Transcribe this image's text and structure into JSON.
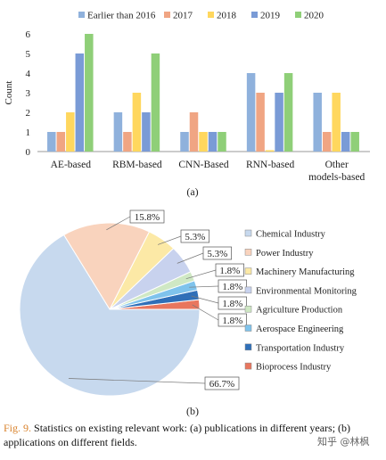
{
  "colors": {
    "earlier": "#8fb1dc",
    "y2017": "#f0a583",
    "y2018": "#ffd75e",
    "y2019": "#7a9bd6",
    "y2020": "#8fcf78",
    "axis": "#999999"
  },
  "chart_data": [
    {
      "type": "bar",
      "panel_label": "(a)",
      "categories": [
        "AE-based",
        "RBM-based",
        "CNN-Based",
        "RNN-based",
        "Other\nmodels-based"
      ],
      "series": [
        {
          "name": "Earlier than 2016",
          "color_key": "earlier",
          "values": [
            1,
            2,
            1,
            4,
            3
          ]
        },
        {
          "name": "2017",
          "color_key": "y2017",
          "values": [
            1,
            1,
            2,
            3,
            1
          ]
        },
        {
          "name": "2018",
          "color_key": "y2018",
          "values": [
            2,
            3,
            1,
            0,
            3
          ]
        },
        {
          "name": "2019",
          "color_key": "y2019",
          "values": [
            5,
            2,
            1,
            3,
            1
          ]
        },
        {
          "name": "2020",
          "color_key": "y2020",
          "values": [
            6,
            5,
            1,
            4,
            1
          ]
        }
      ],
      "ylabel": "Count",
      "ylim": [
        0,
        6
      ],
      "yticks": [
        0,
        1,
        2,
        3,
        4,
        5,
        6
      ],
      "legend_position": "top",
      "grid": false
    },
    {
      "type": "pie",
      "panel_label": "(b)",
      "slices": [
        {
          "label": "Chemical Industry",
          "value": 66.7,
          "text": "66.7%",
          "color": "#c7d9ee"
        },
        {
          "label": "Power Industry",
          "value": 15.8,
          "text": "15.8%",
          "color": "#f9d3bd"
        },
        {
          "label": "Machinery Manufacturing",
          "value": 5.3,
          "text": "5.3%",
          "color": "#fce9a6"
        },
        {
          "label": "Environmental Monitoring",
          "value": 5.3,
          "text": "5.3%",
          "color": "#c8d2ee"
        },
        {
          "label": "Agriculture Production",
          "value": 1.8,
          "text": "1.8%",
          "color": "#cfe8c4"
        },
        {
          "label": "Aerospace Engineering",
          "value": 1.8,
          "text": "1.8%",
          "color": "#7fc3ec"
        },
        {
          "label": "Transportation Industry",
          "value": 1.8,
          "text": "1.8%",
          "color": "#2f6fb8"
        },
        {
          "label": "Bioprocess Industry",
          "value": 1.8,
          "text": "1.8%",
          "color": "#e8765e"
        }
      ],
      "legend_position": "right"
    }
  ],
  "caption": {
    "fig_ref": "Fig. 9.",
    "text": " Statistics on existing relevant work: (a) publications in different years; (b) applications on different fields."
  },
  "watermark": "知乎 @林枫"
}
